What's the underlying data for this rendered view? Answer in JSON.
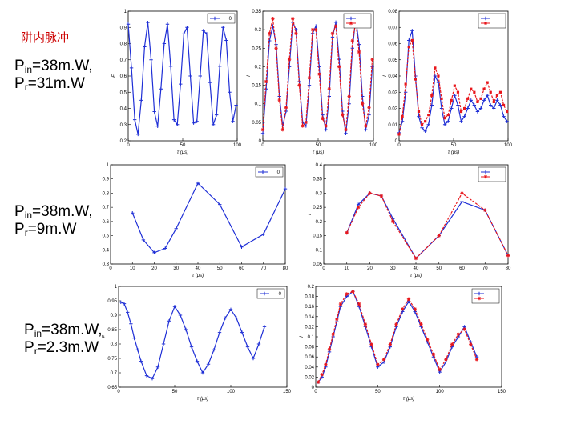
{
  "page": {
    "title": "阱内脉冲",
    "labels": [
      {
        "p": "P",
        "in": "in",
        "v1": "=38m.W,",
        "r": "r",
        "v2": "=31m.W"
      },
      {
        "p": "P",
        "in": "in",
        "v1": "=38m.W,",
        "r": "r",
        "v2": "=9m.W"
      },
      {
        "p": "P",
        "in": "in",
        "v1": "=38m.W,",
        "r": "r",
        "v2": "=2.3m.W"
      }
    ]
  },
  "colors": {
    "blue": "#1f2fd6",
    "red": "#e8161b"
  },
  "chart_data": [
    {
      "id": "r1c1",
      "type": "line",
      "xlabel": "τ (μs)",
      "ylabel": "F",
      "xlim": [
        0,
        100
      ],
      "ylim": [
        0.2,
        1
      ],
      "xticks": [
        0,
        50,
        100
      ],
      "yticks": [
        0.2,
        0.3,
        0.4,
        0.5,
        0.6,
        0.7,
        0.8,
        0.9,
        1
      ],
      "legend": [
        "0"
      ],
      "series": [
        {
          "color": "blue",
          "marker": "plus",
          "x": [
            0,
            3,
            6,
            9,
            12,
            15,
            18,
            21,
            24,
            27,
            30,
            33,
            36,
            39,
            42,
            45,
            48,
            51,
            54,
            57,
            60,
            63,
            66,
            69,
            72,
            75,
            78,
            81,
            84,
            87,
            90,
            93,
            96,
            99
          ],
          "y": [
            0.92,
            0.65,
            0.33,
            0.24,
            0.45,
            0.78,
            0.93,
            0.7,
            0.38,
            0.29,
            0.52,
            0.8,
            0.92,
            0.66,
            0.33,
            0.3,
            0.55,
            0.86,
            0.9,
            0.6,
            0.31,
            0.32,
            0.6,
            0.88,
            0.86,
            0.56,
            0.3,
            0.36,
            0.66,
            0.9,
            0.82,
            0.5,
            0.32,
            0.42
          ]
        }
      ]
    },
    {
      "id": "r1c2",
      "type": "line",
      "xlabel": "τ (μs)",
      "ylabel": "I",
      "xlim": [
        0,
        100
      ],
      "ylim": [
        0,
        0.35
      ],
      "xticks": [
        0,
        50,
        100
      ],
      "yticks": [
        0,
        0.05,
        0.1,
        0.15,
        0.2,
        0.25,
        0.3,
        0.35
      ],
      "legend": [
        "",
        ""
      ],
      "series": [
        {
          "color": "blue",
          "marker": "plus",
          "x": [
            0,
            3,
            6,
            9,
            12,
            15,
            18,
            21,
            24,
            27,
            30,
            33,
            36,
            39,
            42,
            45,
            48,
            51,
            54,
            57,
            60,
            63,
            66,
            69,
            72,
            75,
            78,
            81,
            84,
            87,
            90,
            93,
            96,
            99
          ],
          "y": [
            0.02,
            0.14,
            0.27,
            0.31,
            0.26,
            0.12,
            0.04,
            0.08,
            0.2,
            0.32,
            0.3,
            0.16,
            0.05,
            0.04,
            0.15,
            0.29,
            0.31,
            0.2,
            0.07,
            0.03,
            0.12,
            0.28,
            0.32,
            0.22,
            0.08,
            0.02,
            0.1,
            0.25,
            0.33,
            0.26,
            0.12,
            0.03,
            0.07,
            0.2
          ]
        },
        {
          "color": "red",
          "marker": "star",
          "x": [
            0,
            3,
            6,
            9,
            12,
            15,
            18,
            21,
            24,
            27,
            30,
            33,
            36,
            39,
            42,
            45,
            48,
            51,
            54,
            57,
            60,
            63,
            66,
            69,
            72,
            75,
            78,
            81,
            84,
            87,
            90,
            93,
            96,
            99
          ],
          "y": [
            0.03,
            0.16,
            0.29,
            0.33,
            0.25,
            0.11,
            0.03,
            0.09,
            0.22,
            0.33,
            0.29,
            0.15,
            0.04,
            0.05,
            0.17,
            0.3,
            0.3,
            0.18,
            0.06,
            0.04,
            0.14,
            0.29,
            0.31,
            0.2,
            0.07,
            0.03,
            0.12,
            0.27,
            0.32,
            0.24,
            0.1,
            0.04,
            0.09,
            0.22
          ]
        }
      ]
    },
    {
      "id": "r1c3",
      "type": "line",
      "xlabel": "τ (μs)",
      "ylabel": "I",
      "xlim": [
        0,
        100
      ],
      "ylim": [
        0,
        0.08
      ],
      "xticks": [
        0,
        50,
        100
      ],
      "yticks": [
        0,
        0.01,
        0.02,
        0.03,
        0.04,
        0.05,
        0.06,
        0.07,
        0.08
      ],
      "legend": [
        "",
        ""
      ],
      "series": [
        {
          "color": "blue",
          "marker": "plus",
          "x": [
            0,
            3,
            6,
            9,
            12,
            15,
            18,
            21,
            24,
            27,
            30,
            33,
            36,
            39,
            42,
            45,
            48,
            51,
            54,
            57,
            60,
            63,
            66,
            69,
            72,
            75,
            78,
            81,
            84,
            87,
            90,
            93,
            96,
            99
          ],
          "y": [
            0.005,
            0.012,
            0.03,
            0.062,
            0.068,
            0.04,
            0.015,
            0.008,
            0.006,
            0.01,
            0.022,
            0.04,
            0.036,
            0.02,
            0.01,
            0.012,
            0.02,
            0.028,
            0.022,
            0.012,
            0.015,
            0.02,
            0.025,
            0.022,
            0.018,
            0.02,
            0.025,
            0.028,
            0.022,
            0.02,
            0.025,
            0.022,
            0.015,
            0.012
          ]
        },
        {
          "color": "red",
          "marker": "square",
          "x": [
            0,
            3,
            6,
            9,
            12,
            15,
            18,
            21,
            24,
            27,
            30,
            33,
            36,
            39,
            42,
            45,
            48,
            51,
            54,
            57,
            60,
            63,
            66,
            69,
            72,
            75,
            78,
            81,
            84,
            87,
            90,
            93,
            96,
            99
          ],
          "y": [
            0.004,
            0.015,
            0.035,
            0.058,
            0.062,
            0.038,
            0.018,
            0.01,
            0.012,
            0.016,
            0.028,
            0.045,
            0.04,
            0.026,
            0.014,
            0.016,
            0.025,
            0.034,
            0.03,
            0.018,
            0.02,
            0.026,
            0.032,
            0.03,
            0.024,
            0.026,
            0.032,
            0.036,
            0.03,
            0.024,
            0.028,
            0.03,
            0.022,
            0.018
          ]
        }
      ]
    },
    {
      "id": "r2c1",
      "type": "line",
      "xlabel": "τ (μs)",
      "ylabel": "",
      "xlim": [
        0,
        80
      ],
      "ylim": [
        0.3,
        1
      ],
      "xticks": [
        0,
        10,
        20,
        30,
        40,
        50,
        60,
        70,
        80
      ],
      "yticks": [
        0.3,
        0.4,
        0.5,
        0.6,
        0.7,
        0.8,
        0.9,
        1
      ],
      "legend": [
        "0"
      ],
      "series": [
        {
          "color": "blue",
          "marker": "plus",
          "x": [
            10,
            15,
            20,
            25,
            30,
            40,
            50,
            60,
            70,
            80
          ],
          "y": [
            0.66,
            0.47,
            0.38,
            0.41,
            0.55,
            0.87,
            0.72,
            0.42,
            0.51,
            0.83
          ]
        }
      ]
    },
    {
      "id": "r2c2",
      "type": "line",
      "xlabel": "τ (μs)",
      "ylabel": "I",
      "xlim": [
        0,
        80
      ],
      "ylim": [
        0.05,
        0.4
      ],
      "xticks": [
        0,
        10,
        20,
        30,
        40,
        50,
        60,
        70,
        80
      ],
      "yticks": [
        0.05,
        0.1,
        0.15,
        0.2,
        0.25,
        0.3,
        0.35,
        0.4
      ],
      "legend": [
        "",
        ""
      ],
      "series": [
        {
          "color": "blue",
          "marker": "plus",
          "x": [
            10,
            15,
            20,
            25,
            30,
            40,
            50,
            60,
            70,
            80
          ],
          "y": [
            0.16,
            0.26,
            0.3,
            0.29,
            0.21,
            0.07,
            0.15,
            0.27,
            0.24,
            0.08
          ]
        },
        {
          "color": "red",
          "marker": "star",
          "x": [
            10,
            15,
            20,
            25,
            30,
            40,
            50,
            60,
            70,
            80
          ],
          "y": [
            0.16,
            0.25,
            0.3,
            0.29,
            0.2,
            0.07,
            0.15,
            0.3,
            0.24,
            0.08
          ]
        }
      ]
    },
    {
      "id": "r3c1",
      "type": "line",
      "xlabel": "τ (μs)",
      "ylabel": "F",
      "xlim": [
        0,
        150
      ],
      "ylim": [
        0.65,
        1
      ],
      "xticks": [
        0,
        50,
        100,
        150
      ],
      "yticks": [
        0.65,
        0.7,
        0.75,
        0.8,
        0.85,
        0.9,
        0.95,
        1
      ],
      "legend": [
        "0"
      ],
      "series": [
        {
          "color": "blue",
          "marker": "plus",
          "x": [
            2,
            5,
            8,
            11,
            14,
            17,
            20,
            25,
            30,
            35,
            40,
            45,
            50,
            55,
            60,
            65,
            70,
            75,
            80,
            85,
            90,
            95,
            100,
            105,
            110,
            115,
            120,
            125,
            130
          ],
          "y": [
            0.945,
            0.94,
            0.91,
            0.87,
            0.82,
            0.78,
            0.74,
            0.69,
            0.68,
            0.72,
            0.8,
            0.88,
            0.93,
            0.9,
            0.85,
            0.79,
            0.74,
            0.7,
            0.73,
            0.78,
            0.84,
            0.89,
            0.92,
            0.89,
            0.84,
            0.79,
            0.75,
            0.8,
            0.86
          ]
        }
      ]
    },
    {
      "id": "r3c2",
      "type": "line",
      "xlabel": "τ (μs)",
      "ylabel": "I",
      "xlim": [
        0,
        150
      ],
      "ylim": [
        0,
        0.2
      ],
      "xticks": [
        0,
        50,
        100,
        150
      ],
      "yticks": [
        0,
        0.02,
        0.04,
        0.06,
        0.08,
        0.1,
        0.12,
        0.14,
        0.16,
        0.18,
        0.2
      ],
      "legend": [
        "",
        ""
      ],
      "series": [
        {
          "color": "blue",
          "marker": "plus",
          "x": [
            2,
            5,
            8,
            11,
            14,
            17,
            20,
            25,
            30,
            35,
            40,
            45,
            50,
            55,
            60,
            65,
            70,
            75,
            80,
            85,
            90,
            95,
            100,
            105,
            110,
            115,
            120,
            125,
            130
          ],
          "y": [
            0.01,
            0.02,
            0.04,
            0.07,
            0.1,
            0.13,
            0.16,
            0.18,
            0.19,
            0.16,
            0.12,
            0.08,
            0.04,
            0.05,
            0.08,
            0.12,
            0.15,
            0.17,
            0.15,
            0.12,
            0.09,
            0.06,
            0.03,
            0.05,
            0.08,
            0.1,
            0.12,
            0.09,
            0.06
          ]
        },
        {
          "color": "red",
          "marker": "star",
          "x": [
            2,
            5,
            8,
            11,
            14,
            17,
            20,
            25,
            30,
            35,
            40,
            45,
            50,
            55,
            60,
            65,
            70,
            75,
            80,
            85,
            90,
            95,
            100,
            105,
            110,
            115,
            120,
            125,
            130
          ],
          "y": [
            0.01,
            0.025,
            0.045,
            0.075,
            0.105,
            0.135,
            0.165,
            0.185,
            0.19,
            0.165,
            0.125,
            0.085,
            0.045,
            0.055,
            0.085,
            0.125,
            0.155,
            0.175,
            0.155,
            0.125,
            0.095,
            0.065,
            0.035,
            0.055,
            0.085,
            0.105,
            0.115,
            0.085,
            0.055
          ]
        }
      ]
    }
  ]
}
